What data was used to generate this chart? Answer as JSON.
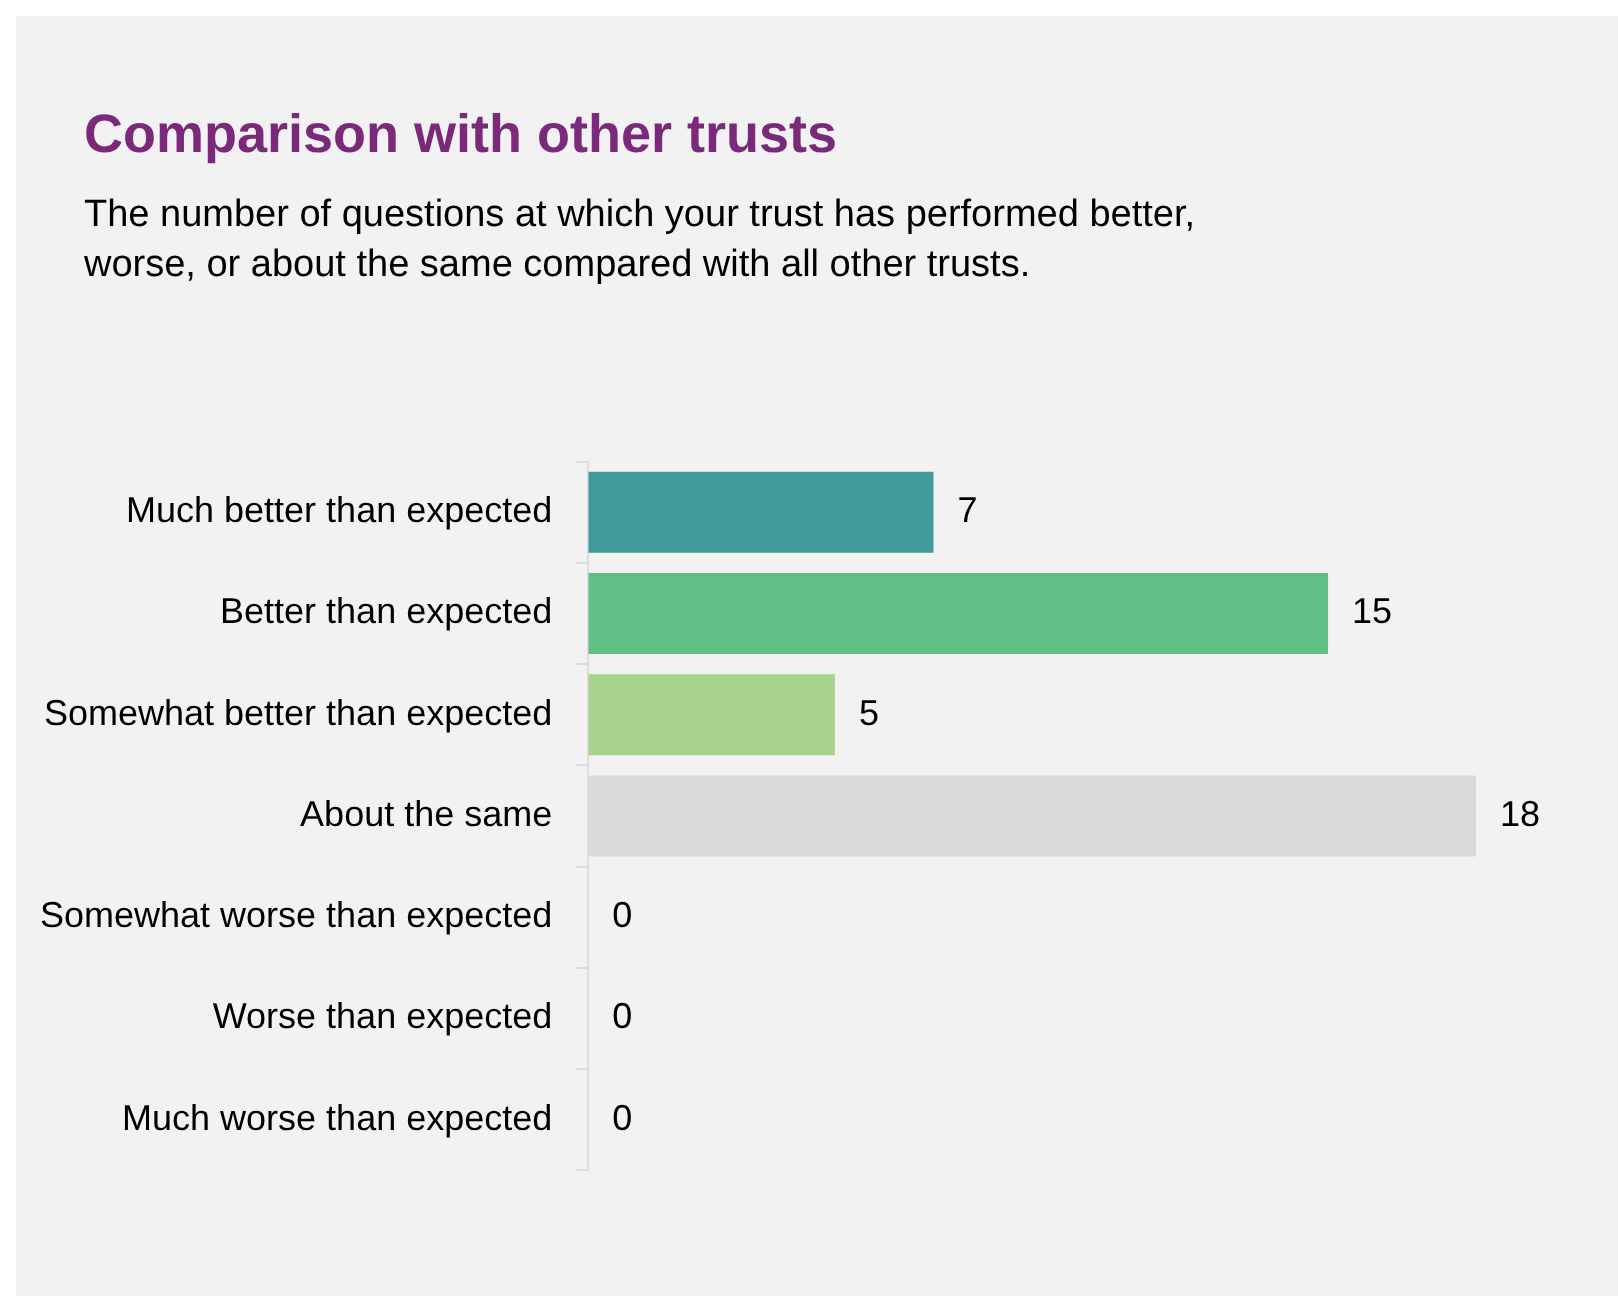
{
  "chart_data": {
    "type": "bar",
    "orientation": "horizontal",
    "title": "Comparison with other trusts",
    "subtitle": "The number of questions at which your trust has performed better, worse, or about the same compared with all other trusts.",
    "categories": [
      "Much better than expected",
      "Better than expected",
      "Somewhat better than expected",
      "About the same",
      "Somewhat worse than expected",
      "Worse than expected",
      "Much worse than expected"
    ],
    "values": [
      7,
      15,
      5,
      18,
      0,
      0,
      0
    ],
    "colors": [
      "#41999a",
      "#5fbf85",
      "#a8d38d",
      "#d9d9d9",
      "#d9d9d9",
      "#d9d9d9",
      "#d9d9d9"
    ],
    "data_labels": true,
    "legend": false
  }
}
